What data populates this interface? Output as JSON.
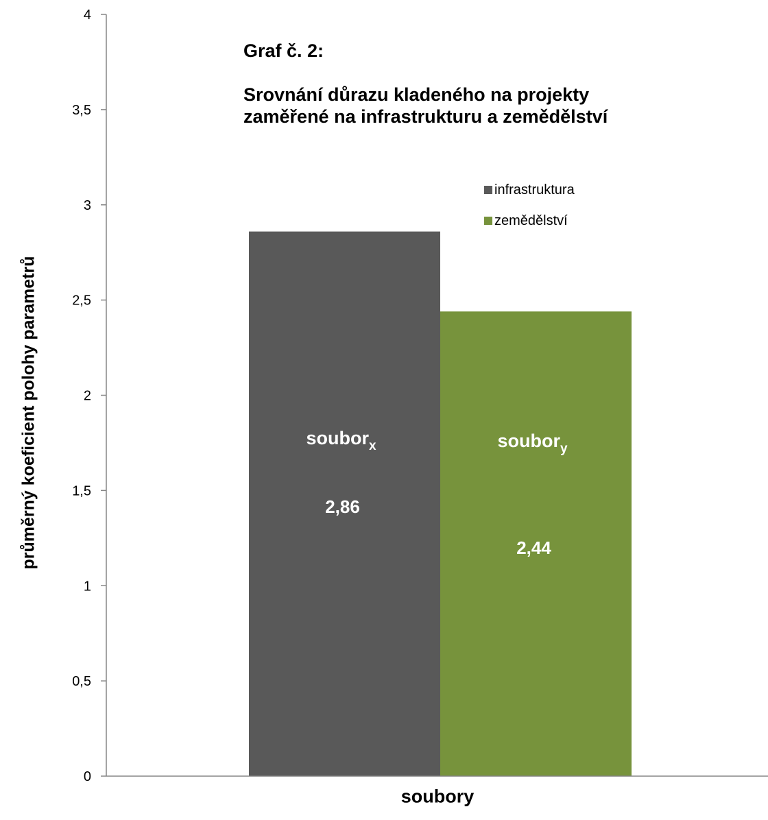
{
  "chart_data": {
    "type": "bar",
    "title_line1": "Graf č. 2:",
    "title_line2": "Srovnání důrazu kladeného na projekty",
    "title_line3": "zaměřené na infrastrukturu a zemědělství",
    "xlabel": "soubory",
    "ylabel": "průměrný koeficient polohy parametrů",
    "ylim": [
      0,
      4
    ],
    "yticks": [
      "0",
      "0,5",
      "1",
      "1,5",
      "2",
      "2,5",
      "3",
      "3,5",
      "4"
    ],
    "ytick_values": [
      0,
      0.5,
      1,
      1.5,
      2,
      2.5,
      3,
      3.5,
      4
    ],
    "grid": false,
    "legend_position": "top-right",
    "series": [
      {
        "name": "infrastruktura",
        "values": [
          2.86
        ],
        "value_label": "2,86",
        "bar_label": "soubor",
        "bar_label_sub": "x",
        "color": "#595959"
      },
      {
        "name": "zemědělství",
        "values": [
          2.44
        ],
        "value_label": "2,44",
        "bar_label": "soubor",
        "bar_label_sub": "y",
        "color": "#77933C"
      }
    ]
  }
}
